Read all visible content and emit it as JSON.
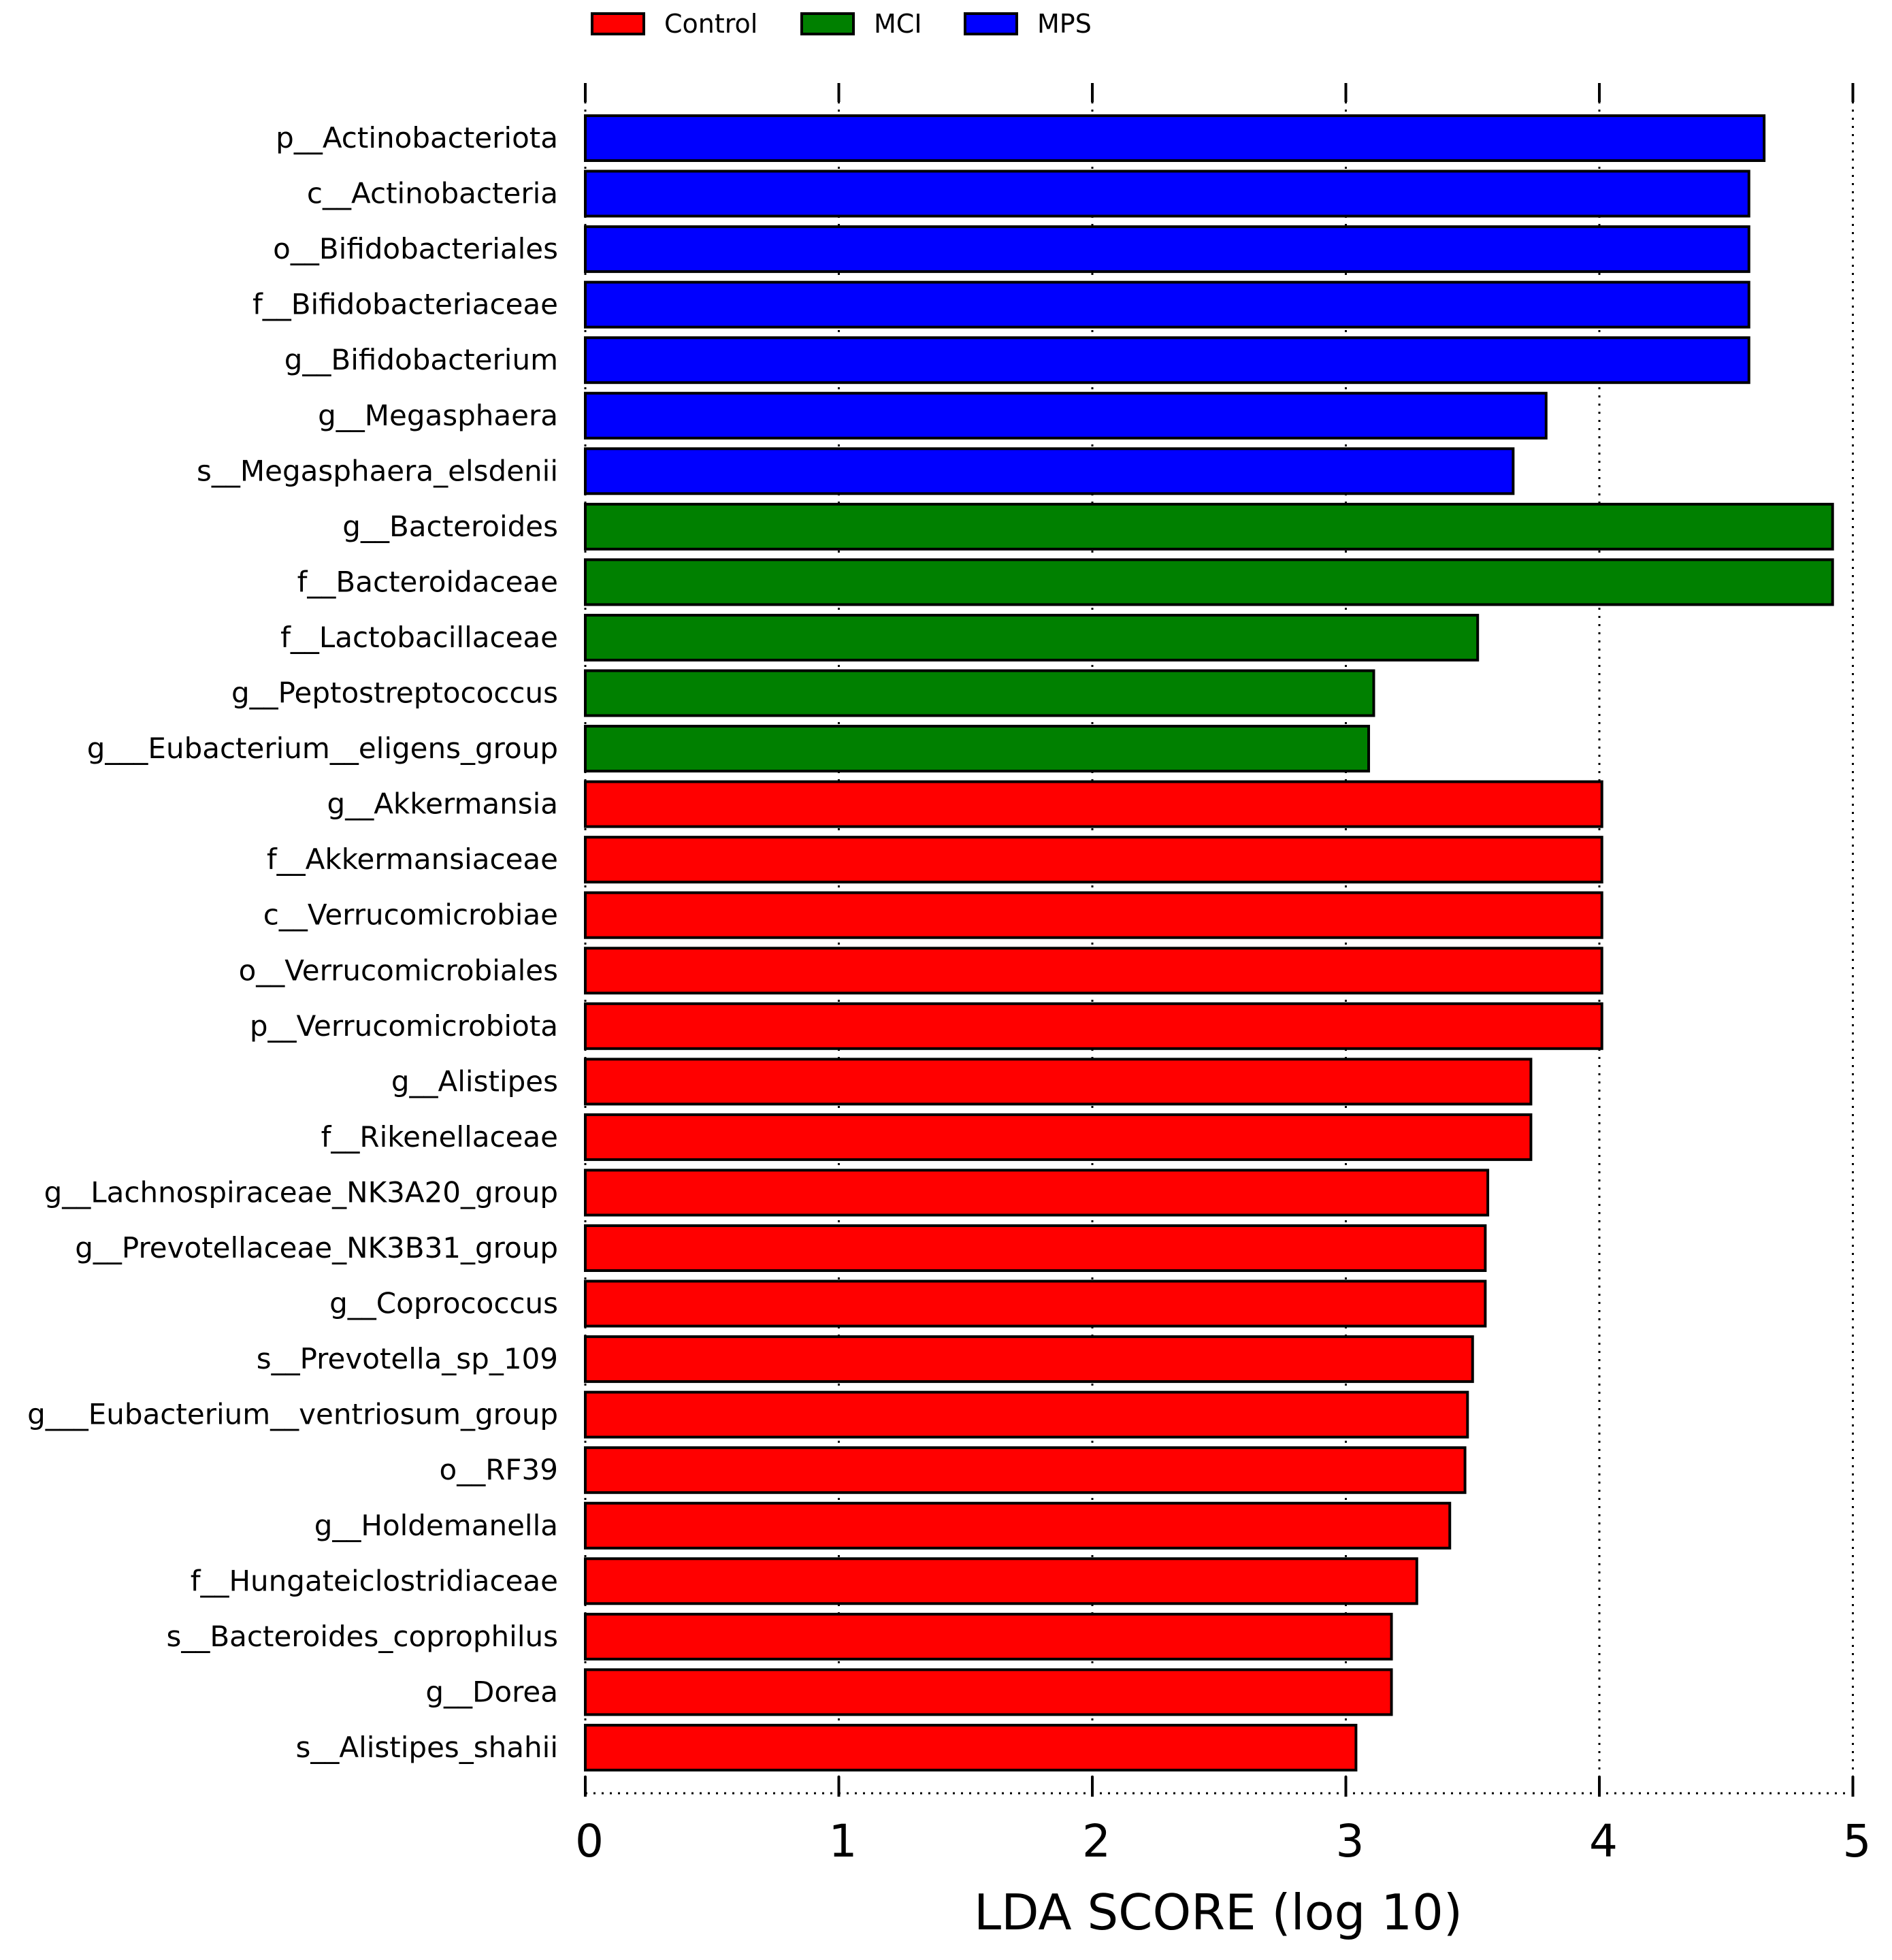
{
  "chart_data": {
    "type": "bar",
    "orientation": "horizontal",
    "title": "",
    "xlabel": "LDA SCORE (log 10)",
    "ylabel": "",
    "xlim": [
      0,
      5
    ],
    "xticks": [
      "0",
      "1",
      "2",
      "3",
      "4",
      "5"
    ],
    "grid": true,
    "legend_position": "top",
    "groups": [
      {
        "name": "Control",
        "color": "#ff0000"
      },
      {
        "name": "MCI",
        "color": "#008000"
      },
      {
        "name": "MPS",
        "color": "#0000ff"
      }
    ],
    "categories": [
      "p__Actinobacteriota",
      "c__Actinobacteria",
      "o__Bifidobacteriales",
      "f__Bifidobacteriaceae",
      "g__Bifidobacterium",
      "g__Megasphaera",
      "s__Megasphaera_elsdenii",
      "g__Bacteroides",
      "f__Bacteroidaceae",
      "f__Lactobacillaceae",
      "g__Peptostreptococcus",
      "g___Eubacterium__eligens_group",
      "g__Akkermansia",
      "f__Akkermansiaceae",
      "c__Verrucomicrobiae",
      "o__Verrucomicrobiales",
      "p__Verrucomicrobiota",
      "g__Alistipes",
      "f__Rikenellaceae",
      "g__Lachnospiraceae_NK3A20_group",
      "g__Prevotellaceae_NK3B31_group",
      "g__Coprococcus",
      "s__Prevotella_sp_109",
      "g___Eubacterium__ventriosum_group",
      "o__RF39",
      "g__Holdemanella",
      "f__Hungateiclostridiaceae",
      "s__Bacteroides_coprophilus",
      "g__Dorea",
      "s__Alistipes_shahii"
    ],
    "values": [
      4.65,
      4.59,
      4.59,
      4.59,
      4.59,
      3.79,
      3.66,
      4.92,
      4.92,
      3.52,
      3.11,
      3.09,
      4.01,
      4.01,
      4.01,
      4.01,
      4.01,
      3.73,
      3.73,
      3.56,
      3.55,
      3.55,
      3.5,
      3.48,
      3.47,
      3.41,
      3.28,
      3.18,
      3.18,
      3.04
    ],
    "group_of_bar": [
      "MPS",
      "MPS",
      "MPS",
      "MPS",
      "MPS",
      "MPS",
      "MPS",
      "MCI",
      "MCI",
      "MCI",
      "MCI",
      "MCI",
      "Control",
      "Control",
      "Control",
      "Control",
      "Control",
      "Control",
      "Control",
      "Control",
      "Control",
      "Control",
      "Control",
      "Control",
      "Control",
      "Control",
      "Control",
      "Control",
      "Control",
      "Control"
    ]
  }
}
